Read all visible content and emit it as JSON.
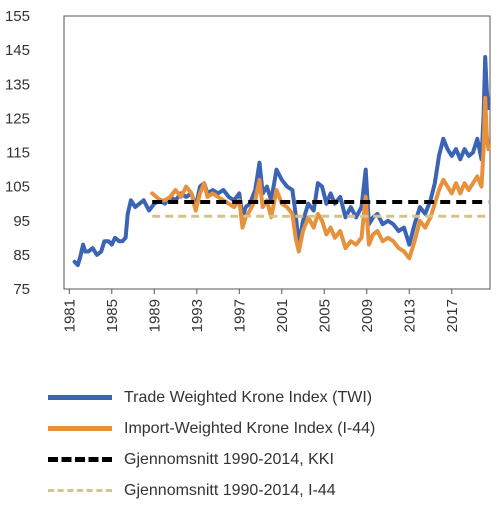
{
  "chart_data": {
    "type": "line",
    "ylim": [
      75,
      155
    ],
    "xlim": [
      1980.5,
      2020.6
    ],
    "yticks": [
      "155",
      "145",
      "135",
      "125",
      "115",
      "105",
      "95",
      "85",
      "75"
    ],
    "xticks": [
      "1981",
      "1985",
      "1989",
      "1993",
      "1997",
      "2001",
      "2005",
      "2009",
      "2013",
      "2017"
    ],
    "grid": false,
    "legend_position": "below",
    "series": [
      {
        "name": "Trade Weighted Krone Index (TWI)",
        "color": "#3c64b4",
        "style": "solid",
        "x": [
          1981.5,
          1981.8,
          1982.0,
          1982.3,
          1982.5,
          1982.8,
          1983.2,
          1983.6,
          1984.0,
          1984.3,
          1984.7,
          1985.0,
          1985.3,
          1985.7,
          1986.0,
          1986.3,
          1986.5,
          1986.8,
          1987.2,
          1987.6,
          1988.0,
          1988.5,
          1989.0,
          1989.5,
          1990.0,
          1990.5,
          1991.0,
          1991.5,
          1992.0,
          1992.5,
          1992.9,
          1993.3,
          1993.7,
          1994.0,
          1994.5,
          1995.0,
          1995.5,
          1996.0,
          1996.5,
          1997.0,
          1997.3,
          1997.6,
          1998.0,
          1998.5,
          1998.9,
          1999.2,
          1999.6,
          2000.0,
          2000.5,
          2001.0,
          2001.5,
          2002.0,
          2002.3,
          2002.6,
          2003.0,
          2003.5,
          2004.0,
          2004.4,
          2004.8,
          2005.2,
          2005.6,
          2006.0,
          2006.5,
          2007.0,
          2007.5,
          2008.0,
          2008.5,
          2008.9,
          2009.2,
          2009.6,
          2010.0,
          2010.5,
          2011.0,
          2011.5,
          2012.0,
          2012.5,
          2013.0,
          2013.5,
          2014.0,
          2014.5,
          2015.0,
          2015.4,
          2015.8,
          2016.2,
          2016.6,
          2017.0,
          2017.4,
          2017.8,
          2018.2,
          2018.6,
          2019.0,
          2019.4,
          2019.8,
          2020.0,
          2020.15,
          2020.3,
          2020.45
        ],
        "y": [
          83,
          82,
          84,
          88,
          86,
          86,
          87,
          85,
          86,
          89,
          89,
          88,
          90,
          89,
          89,
          90,
          97,
          101,
          99,
          100,
          101,
          98,
          100,
          101,
          100,
          102,
          101,
          103,
          102,
          103,
          99,
          105,
          106,
          103,
          104,
          103,
          104,
          102,
          101,
          103,
          96,
          99,
          100,
          104,
          112,
          103,
          105,
          101,
          110,
          107,
          105,
          104,
          97,
          88,
          95,
          100,
          98,
          106,
          105,
          100,
          103,
          100,
          102,
          96,
          99,
          96,
          99,
          110,
          94,
          96,
          97,
          94,
          95,
          94,
          92,
          93,
          88,
          94,
          99,
          97,
          101,
          106,
          114,
          119,
          116,
          114,
          116,
          113,
          116,
          114,
          115,
          119,
          113,
          126,
          143,
          133,
          128
        ]
      },
      {
        "name": "Import-Weighted Krone Index (I-44)",
        "color": "#e8913c",
        "style": "solid",
        "x": [
          1988.8,
          1989.2,
          1989.6,
          1990.0,
          1990.5,
          1991.0,
          1991.5,
          1992.0,
          1992.5,
          1992.9,
          1993.3,
          1993.7,
          1994.0,
          1994.5,
          1995.0,
          1995.5,
          1996.0,
          1996.5,
          1997.0,
          1997.3,
          1997.6,
          1998.0,
          1998.5,
          1998.9,
          1999.2,
          1999.6,
          2000.0,
          2000.5,
          2001.0,
          2001.5,
          2002.0,
          2002.3,
          2002.6,
          2003.0,
          2003.5,
          2004.0,
          2004.4,
          2004.8,
          2005.2,
          2005.6,
          2006.0,
          2006.5,
          2007.0,
          2007.5,
          2008.0,
          2008.5,
          2008.9,
          2009.2,
          2009.6,
          2010.0,
          2010.5,
          2011.0,
          2011.5,
          2012.0,
          2012.5,
          2013.0,
          2013.5,
          2014.0,
          2014.5,
          2015.0,
          2015.4,
          2015.8,
          2016.2,
          2016.6,
          2017.0,
          2017.4,
          2017.8,
          2018.2,
          2018.6,
          2019.0,
          2019.4,
          2019.8,
          2020.0,
          2020.15,
          2020.3,
          2020.45
        ],
        "y": [
          103,
          102,
          101,
          101,
          102,
          104,
          102,
          105,
          103,
          98,
          103,
          106,
          102,
          103,
          102,
          101,
          100,
          99,
          101,
          93,
          96,
          98,
          101,
          107,
          99,
          101,
          96,
          104,
          100,
          99,
          97,
          90,
          86,
          92,
          96,
          93,
          97,
          95,
          91,
          93,
          90,
          92,
          87,
          89,
          88,
          90,
          102,
          88,
          91,
          92,
          89,
          90,
          89,
          87,
          86,
          84,
          89,
          95,
          93,
          96,
          100,
          104,
          107,
          105,
          103,
          106,
          103,
          106,
          104,
          106,
          108,
          105,
          116,
          131,
          120,
          116
        ]
      },
      {
        "name": "Gjennomsnitt 1990-2014,  KKI",
        "color": "#000000",
        "style": "dashed",
        "x": [
          1988.8,
          2020.45
        ],
        "y": [
          100.5,
          100.5
        ]
      },
      {
        "name": "Gjennomsnitt 1990-2014, I-44",
        "color": "#d4c48c",
        "style": "dashed",
        "x": [
          1988.8,
          2020.45
        ],
        "y": [
          96.3,
          96.3
        ]
      }
    ]
  }
}
